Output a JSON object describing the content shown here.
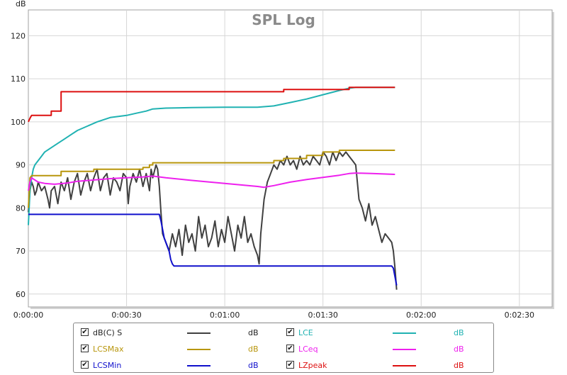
{
  "chart_data": {
    "type": "line",
    "title": "SPL Log",
    "y_unit_label": "dB",
    "ylim": [
      57,
      126
    ],
    "xlim": [
      0,
      160
    ],
    "y_ticks": [
      60,
      70,
      80,
      90,
      100,
      110,
      120
    ],
    "y_tick_labels": [
      "60",
      "70",
      "80",
      "90",
      "100",
      "110",
      "120"
    ],
    "x_ticks": [
      0,
      30,
      60,
      90,
      120,
      150
    ],
    "x_tick_labels": [
      "0:00:00",
      "0:00:30",
      "0:01:00",
      "0:01:30",
      "0:02:00",
      "0:02:30"
    ],
    "grid": true,
    "series": [
      {
        "name": "dB(C) S",
        "color": "#404040",
        "unit": "dB",
        "checked": true,
        "points": [
          [
            0,
            79
          ],
          [
            0.5,
            84
          ],
          [
            1,
            86
          ],
          [
            1.5,
            85
          ],
          [
            2,
            83
          ],
          [
            2.5,
            84
          ],
          [
            3,
            86
          ],
          [
            4,
            84
          ],
          [
            5,
            85
          ],
          [
            6,
            82
          ],
          [
            6.5,
            80
          ],
          [
            7,
            84
          ],
          [
            8,
            85
          ],
          [
            9,
            81
          ],
          [
            10,
            86
          ],
          [
            11,
            84
          ],
          [
            12,
            87
          ],
          [
            13,
            82
          ],
          [
            14,
            86
          ],
          [
            15,
            88
          ],
          [
            16,
            83
          ],
          [
            17,
            86
          ],
          [
            18,
            88
          ],
          [
            19,
            84
          ],
          [
            20,
            87
          ],
          [
            21,
            89
          ],
          [
            22,
            84
          ],
          [
            23,
            87
          ],
          [
            24,
            88
          ],
          [
            25,
            83
          ],
          [
            26,
            87
          ],
          [
            27,
            86
          ],
          [
            28,
            84
          ],
          [
            29,
            88
          ],
          [
            30,
            87
          ],
          [
            30.5,
            81
          ],
          [
            31,
            85
          ],
          [
            32,
            88
          ],
          [
            33,
            86
          ],
          [
            34,
            89
          ],
          [
            35,
            85
          ],
          [
            36,
            88
          ],
          [
            37,
            84
          ],
          [
            37.5,
            89
          ],
          [
            38,
            87
          ],
          [
            39,
            90
          ],
          [
            39.5,
            89
          ],
          [
            40,
            85
          ],
          [
            40.5,
            79
          ],
          [
            41,
            74
          ],
          [
            42,
            72
          ],
          [
            43,
            70
          ],
          [
            44,
            74
          ],
          [
            45,
            71
          ],
          [
            46,
            75
          ],
          [
            47,
            69
          ],
          [
            48,
            76
          ],
          [
            49,
            72
          ],
          [
            50,
            74
          ],
          [
            51,
            70
          ],
          [
            52,
            78
          ],
          [
            53,
            73
          ],
          [
            54,
            76
          ],
          [
            55,
            71
          ],
          [
            56,
            73
          ],
          [
            57,
            77
          ],
          [
            58,
            71
          ],
          [
            59,
            75
          ],
          [
            60,
            72
          ],
          [
            61,
            78
          ],
          [
            62,
            74
          ],
          [
            63,
            70
          ],
          [
            64,
            76
          ],
          [
            65,
            73
          ],
          [
            66,
            78
          ],
          [
            67,
            72
          ],
          [
            68,
            74
          ],
          [
            69,
            71
          ],
          [
            70,
            69
          ],
          [
            70.5,
            67
          ],
          [
            71,
            74
          ],
          [
            72,
            82
          ],
          [
            73,
            86
          ],
          [
            74,
            88
          ],
          [
            75,
            90
          ],
          [
            76,
            89
          ],
          [
            77,
            91
          ],
          [
            78,
            90
          ],
          [
            79,
            92
          ],
          [
            80,
            90
          ],
          [
            81,
            91
          ],
          [
            82,
            89
          ],
          [
            83,
            92
          ],
          [
            84,
            90
          ],
          [
            85,
            91
          ],
          [
            86,
            90
          ],
          [
            87,
            92
          ],
          [
            88,
            91
          ],
          [
            89,
            90
          ],
          [
            90,
            93
          ],
          [
            91,
            92
          ],
          [
            92,
            90
          ],
          [
            93,
            93
          ],
          [
            94,
            91
          ],
          [
            95,
            93
          ],
          [
            96,
            92
          ],
          [
            97,
            93
          ],
          [
            98,
            92
          ],
          [
            99,
            91
          ],
          [
            100,
            90
          ],
          [
            100.5,
            86
          ],
          [
            101,
            82
          ],
          [
            102,
            80
          ],
          [
            103,
            77
          ],
          [
            104,
            81
          ],
          [
            105,
            76
          ],
          [
            106,
            78
          ],
          [
            107,
            75
          ],
          [
            108,
            72
          ],
          [
            109,
            74
          ],
          [
            110,
            73
          ],
          [
            111,
            72
          ],
          [
            111.5,
            70
          ],
          [
            112,
            66
          ],
          [
            112.5,
            61
          ]
        ]
      },
      {
        "name": "LCE",
        "color": "#20b2b2",
        "unit": "dB",
        "checked": true,
        "points": [
          [
            0,
            76
          ],
          [
            0.5,
            84
          ],
          [
            1,
            87
          ],
          [
            1.5,
            89
          ],
          [
            2,
            90
          ],
          [
            3,
            91
          ],
          [
            4,
            92
          ],
          [
            5,
            93
          ],
          [
            7,
            94
          ],
          [
            9,
            95
          ],
          [
            11,
            96
          ],
          [
            13,
            97
          ],
          [
            15,
            98
          ],
          [
            18,
            99
          ],
          [
            21,
            100
          ],
          [
            25,
            101
          ],
          [
            30,
            101.5
          ],
          [
            33,
            102
          ],
          [
            36,
            102.5
          ],
          [
            38,
            103
          ],
          [
            42,
            103.2
          ],
          [
            50,
            103.3
          ],
          [
            60,
            103.4
          ],
          [
            70,
            103.4
          ],
          [
            75,
            103.7
          ],
          [
            80,
            104.5
          ],
          [
            85,
            105.3
          ],
          [
            90,
            106.3
          ],
          [
            95,
            107.3
          ],
          [
            98,
            107.8
          ],
          [
            100,
            108
          ],
          [
            112,
            108
          ]
        ]
      },
      {
        "name": "LCSMax",
        "color": "#b8960c",
        "unit": "dB",
        "checked": true,
        "points": [
          [
            0,
            80
          ],
          [
            0.5,
            87
          ],
          [
            1,
            87.5
          ],
          [
            10,
            87.5
          ],
          [
            10,
            88.5
          ],
          [
            20,
            88.5
          ],
          [
            20,
            89
          ],
          [
            35,
            89
          ],
          [
            35,
            89.4
          ],
          [
            37,
            89.4
          ],
          [
            37,
            90
          ],
          [
            38,
            90
          ],
          [
            38,
            90.5
          ],
          [
            75,
            90.5
          ],
          [
            75,
            91
          ],
          [
            78,
            91
          ],
          [
            78,
            91.5
          ],
          [
            85,
            91.5
          ],
          [
            85,
            92.2
          ],
          [
            90,
            92.2
          ],
          [
            90,
            93
          ],
          [
            95,
            93
          ],
          [
            95,
            93.4
          ],
          [
            112,
            93.4
          ]
        ]
      },
      {
        "name": "LCeq",
        "color": "#ee20ee",
        "unit": "dB",
        "checked": true,
        "points": [
          [
            0,
            84
          ],
          [
            0.5,
            86
          ],
          [
            1,
            87
          ],
          [
            2,
            86.5
          ],
          [
            3,
            86
          ],
          [
            5,
            85.7
          ],
          [
            8,
            85.5
          ],
          [
            12,
            85.8
          ],
          [
            15,
            86.2
          ],
          [
            20,
            86.5
          ],
          [
            25,
            86.8
          ],
          [
            30,
            87
          ],
          [
            35,
            87.2
          ],
          [
            38,
            87.4
          ],
          [
            42,
            87
          ],
          [
            50,
            86.4
          ],
          [
            60,
            85.7
          ],
          [
            70,
            85
          ],
          [
            72,
            84.8
          ],
          [
            75,
            85.2
          ],
          [
            80,
            86
          ],
          [
            85,
            86.6
          ],
          [
            90,
            87.1
          ],
          [
            95,
            87.6
          ],
          [
            98,
            88
          ],
          [
            100,
            88.1
          ],
          [
            105,
            88
          ],
          [
            112,
            87.8
          ]
        ]
      },
      {
        "name": "LCSMin",
        "color": "#1010cc",
        "unit": "dB",
        "checked": true,
        "points": [
          [
            0,
            78.5
          ],
          [
            40,
            78.5
          ],
          [
            40.5,
            77
          ],
          [
            41,
            75
          ],
          [
            41.5,
            73
          ],
          [
            42,
            72
          ],
          [
            42.5,
            71
          ],
          [
            43,
            70
          ],
          [
            43.5,
            68
          ],
          [
            44,
            67
          ],
          [
            44.5,
            66.5
          ],
          [
            111,
            66.5
          ],
          [
            111.5,
            66
          ],
          [
            112,
            64
          ],
          [
            112.5,
            62
          ]
        ]
      },
      {
        "name": "LZpeak",
        "color": "#dd1010",
        "unit": "dB",
        "checked": true,
        "points": [
          [
            0,
            100
          ],
          [
            0.3,
            100.5
          ],
          [
            0.6,
            101
          ],
          [
            1,
            101.5
          ],
          [
            7,
            101.5
          ],
          [
            7,
            102.5
          ],
          [
            10,
            102.5
          ],
          [
            10,
            107
          ],
          [
            78,
            107
          ],
          [
            78,
            107.5
          ],
          [
            98,
            107.5
          ],
          [
            98,
            108
          ],
          [
            112,
            108
          ]
        ]
      }
    ]
  }
}
